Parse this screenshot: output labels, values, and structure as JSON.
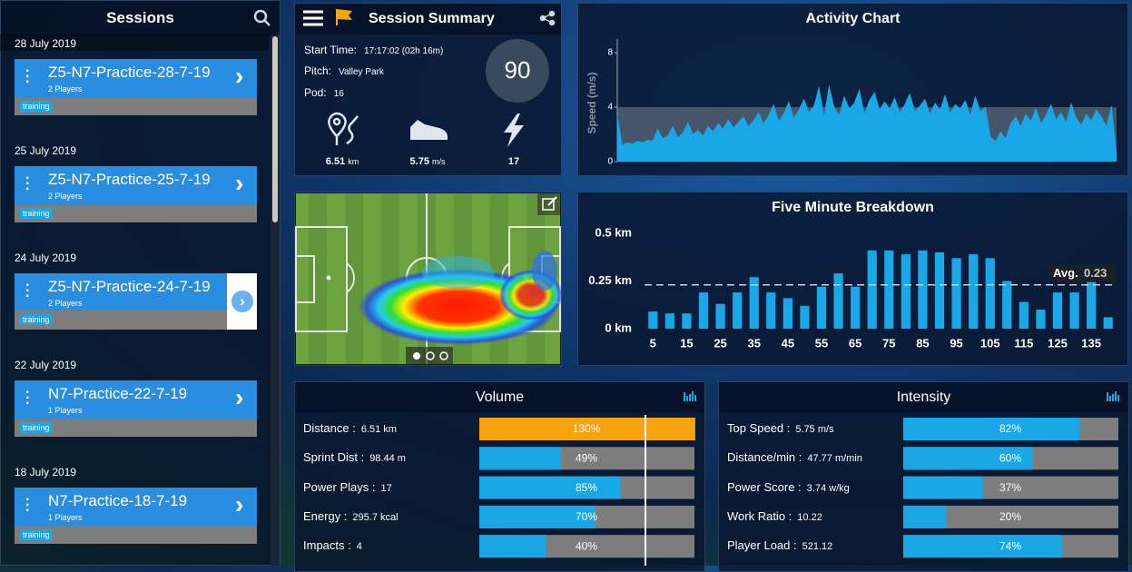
{
  "sessions": {
    "title": "Sessions",
    "selected_index": 2,
    "groups": [
      {
        "date": "28 July 2019",
        "name": "Z5-N7-Practice-28-7-19",
        "players": "2 Players",
        "tag": "training"
      },
      {
        "date": "25 July 2019",
        "name": "Z5-N7-Practice-25-7-19",
        "players": "2 Players",
        "tag": "training"
      },
      {
        "date": "24 July 2019",
        "name": "Z5-N7-Practice-24-7-19",
        "players": "2 Players",
        "tag": "training"
      },
      {
        "date": "22 July 2019",
        "name": "N7-Practice-22-7-19",
        "players": "1 Players",
        "tag": "training"
      },
      {
        "date": "18 July 2019",
        "name": "N7-Practice-18-7-19",
        "players": "1 Players",
        "tag": "training"
      }
    ]
  },
  "summary": {
    "title": "Session Summary",
    "start_time_label": "Start Time:",
    "start_time": "17:17:02 (02h 16m)",
    "pitch_label": "Pitch:",
    "pitch": "Valley Park",
    "pod_label": "Pod:",
    "pod": "16",
    "score": "90",
    "stats": [
      {
        "value": "6.51",
        "unit": "km"
      },
      {
        "value": "5.75",
        "unit": "m/s"
      },
      {
        "value": "17"
      }
    ]
  },
  "chart_data": [
    {
      "type": "area",
      "title": "Activity Chart",
      "y_label": "Speed (m/s)",
      "color": "#1aa7e8",
      "values": [
        3.4,
        1.2,
        1.4,
        1.3,
        1.5,
        1.4,
        1.6,
        1.5,
        2.4,
        1.7,
        1.9,
        2.6,
        1.8,
        2.1,
        2.9,
        2.0,
        2.3,
        1.9,
        2.6,
        2.2,
        2.8,
        2.4,
        3.1,
        2.5,
        2.9,
        3.3,
        2.6,
        3.0,
        3.6,
        2.8,
        3.4,
        4.2,
        3.0,
        3.5,
        4.4,
        3.2,
        3.8,
        4.6,
        3.6,
        4.1,
        5.5,
        3.3,
        5.6,
        4.0,
        3.4,
        4.8,
        3.9,
        4.3,
        5.3,
        3.5,
        4.5,
        5.1,
        3.8,
        4.4,
        3.9,
        4.7,
        3.6,
        4.2,
        5.0,
        3.7,
        4.1,
        4.6,
        3.5,
        4.3,
        3.8,
        4.9,
        3.6,
        4.2,
        3.9,
        4.5,
        3.4,
        4.8,
        3.7,
        4.0,
        1.8,
        1.5,
        2.2,
        1.7,
        2.8,
        3.3,
        2.6,
        3.5,
        3.0,
        3.9,
        2.8,
        3.4,
        4.2,
        3.1,
        3.6,
        2.9,
        4.3,
        3.2,
        2.7,
        3.5,
        3.0,
        3.8,
        3.3,
        2.6,
        4.1,
        0.6
      ],
      "ylim": [
        0,
        9
      ],
      "yticks": [
        0,
        4,
        8
      ]
    },
    {
      "type": "bar",
      "title": "Five Minute Breakdown",
      "color": "#1aa7e8",
      "x": [
        5,
        10,
        15,
        20,
        25,
        30,
        35,
        40,
        45,
        50,
        55,
        60,
        65,
        70,
        75,
        80,
        85,
        90,
        95,
        100,
        105,
        110,
        115,
        120,
        125,
        130,
        135,
        140
      ],
      "values": [
        0.09,
        0.08,
        0.08,
        0.19,
        0.13,
        0.19,
        0.27,
        0.19,
        0.16,
        0.12,
        0.22,
        0.29,
        0.22,
        0.41,
        0.41,
        0.39,
        0.41,
        0.4,
        0.37,
        0.39,
        0.37,
        0.25,
        0.14,
        0.1,
        0.19,
        0.19,
        0.26,
        0.06
      ],
      "xlim": [
        2.5,
        142.5
      ],
      "xticks": [
        5,
        15,
        25,
        35,
        45,
        55,
        65,
        75,
        85,
        95,
        105,
        115,
        125,
        135
      ],
      "ylim": [
        0,
        0.55
      ],
      "yticks": [
        {
          "value": 0,
          "label": "0 km"
        },
        {
          "value": 0.25,
          "label": "0.25 km"
        },
        {
          "value": 0.5,
          "label": "0.5 km"
        }
      ],
      "average": {
        "label": "Avg.",
        "value": 0.23
      }
    }
  ],
  "volume": {
    "title": "Volume",
    "rows": [
      {
        "label": "Distance :",
        "value": "6.51 km",
        "percent": 130,
        "percent_label": "130%",
        "color": "#f5a30f"
      },
      {
        "label": "Sprint Dist :",
        "value": "98.44 m",
        "percent": 49,
        "percent_label": "49%",
        "color": "#1aa7e8"
      },
      {
        "label": "Power Plays :",
        "value": "17",
        "percent": 85,
        "percent_label": "85%",
        "color": "#1aa7e8"
      },
      {
        "label": "Energy :",
        "value": "295.7 kcal",
        "percent": 70,
        "percent_label": "70%",
        "color": "#1aa7e8"
      },
      {
        "label": "Impacts :",
        "value": "4",
        "percent": 40,
        "percent_label": "40%",
        "color": "#1aa7e8"
      }
    ]
  },
  "intensity": {
    "title": "Intensity",
    "rows": [
      {
        "label": "Top Speed :",
        "value": "5.75 m/s",
        "percent": 82,
        "percent_label": "82%",
        "color": "#1aa7e8"
      },
      {
        "label": "Distance/min :",
        "value": "47.77 m/min",
        "percent": 60,
        "percent_label": "60%",
        "color": "#1aa7e8"
      },
      {
        "label": "Power Score :",
        "value": "3.74 w/kg",
        "percent": 37,
        "percent_label": "37%",
        "color": "#1aa7e8"
      },
      {
        "label": "Work Ratio :",
        "value": "10.22",
        "percent": 20,
        "percent_label": "20%",
        "color": "#1aa7e8"
      },
      {
        "label": "Player Load :",
        "value": "521.12",
        "percent": 74,
        "percent_label": "74%",
        "color": "#1aa7e8"
      }
    ]
  }
}
